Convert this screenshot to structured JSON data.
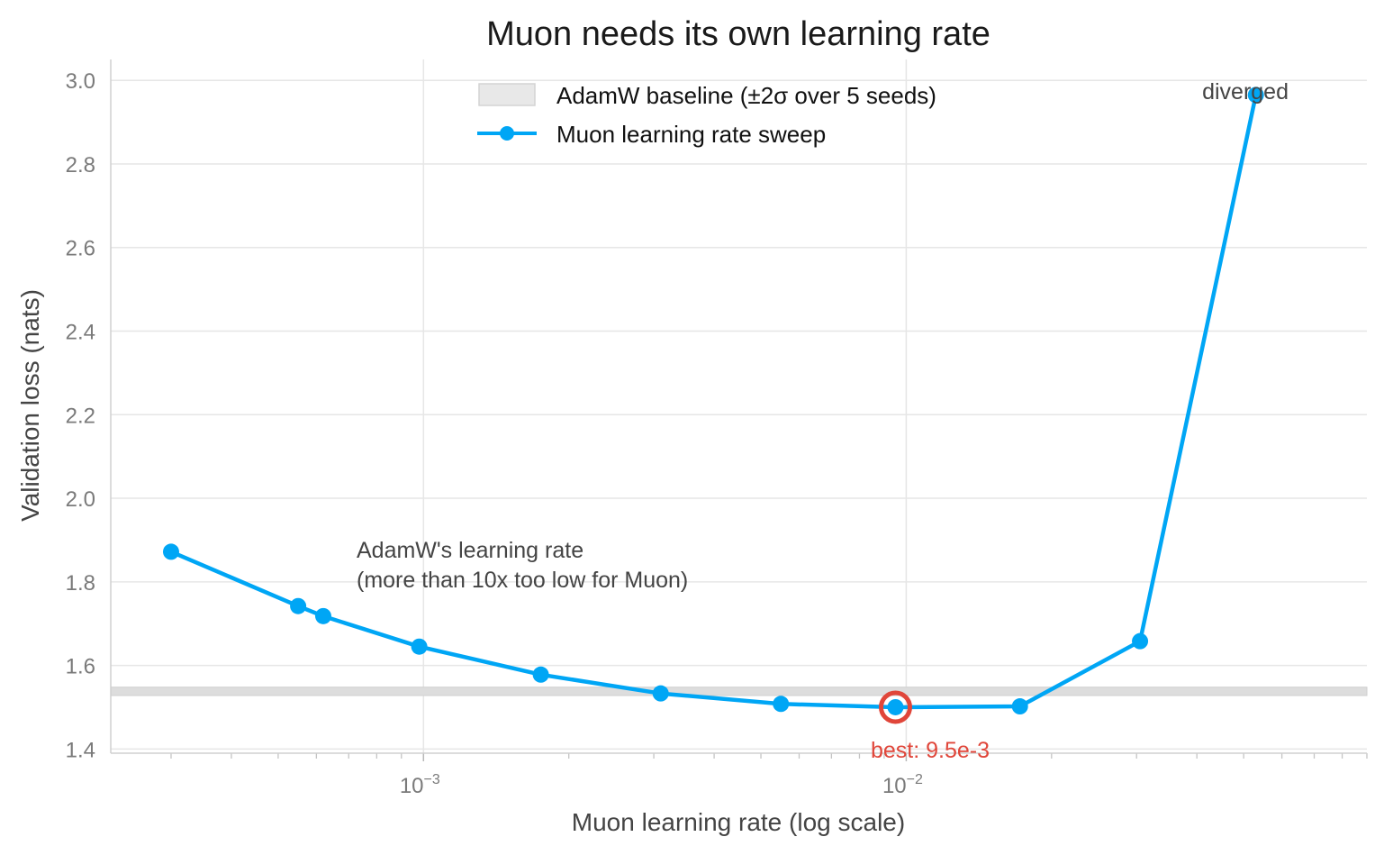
{
  "chart_data": {
    "type": "line",
    "title": "Muon needs its own learning rate",
    "xlabel": "Muon learning rate (log scale)",
    "ylabel": "Validation loss (nats)",
    "xscale": "log",
    "xlim": [
      0.000225,
      0.09
    ],
    "ylim": [
      1.39,
      3.05
    ],
    "grid": true,
    "legend_position": "top-center",
    "x_ticks": [
      {
        "value": 0.001,
        "base": "10",
        "exp": "−3"
      },
      {
        "value": 0.01,
        "base": "10",
        "exp": "−2"
      }
    ],
    "y_ticks": [
      {
        "value": 1.4,
        "label": "1.4"
      },
      {
        "value": 1.6,
        "label": "1.6"
      },
      {
        "value": 1.8,
        "label": "1.8"
      },
      {
        "value": 2.0,
        "label": "2.0"
      },
      {
        "value": 2.2,
        "label": "2.2"
      },
      {
        "value": 2.4,
        "label": "2.4"
      },
      {
        "value": 2.6,
        "label": "2.6"
      },
      {
        "value": 2.8,
        "label": "2.8"
      },
      {
        "value": 3.0,
        "label": "3.0"
      }
    ],
    "baseline": {
      "name": "AdamW baseline (±2σ over 5 seeds)",
      "low": 1.528,
      "high": 1.548,
      "color": "#dddddd"
    },
    "series": [
      {
        "name": "Muon learning rate sweep",
        "color": "#00a6f5",
        "x": [
          0.0003,
          0.00055,
          0.00062,
          0.00098,
          0.00175,
          0.0031,
          0.0055,
          0.0095,
          0.0172,
          0.0305,
          0.053
        ],
        "y": [
          1.872,
          1.742,
          1.718,
          1.645,
          1.578,
          1.533,
          1.508,
          1.5,
          1.502,
          1.658,
          2.965
        ]
      }
    ],
    "best": {
      "x": 0.0095,
      "y": 1.5,
      "label": "best: 9.5e-3",
      "color": "#e0463a"
    },
    "annotations": [
      {
        "lines": [
          "AdamW's learning rate",
          "(more than 10x too low for Muon)"
        ]
      },
      {
        "text": "diverged"
      }
    ]
  }
}
